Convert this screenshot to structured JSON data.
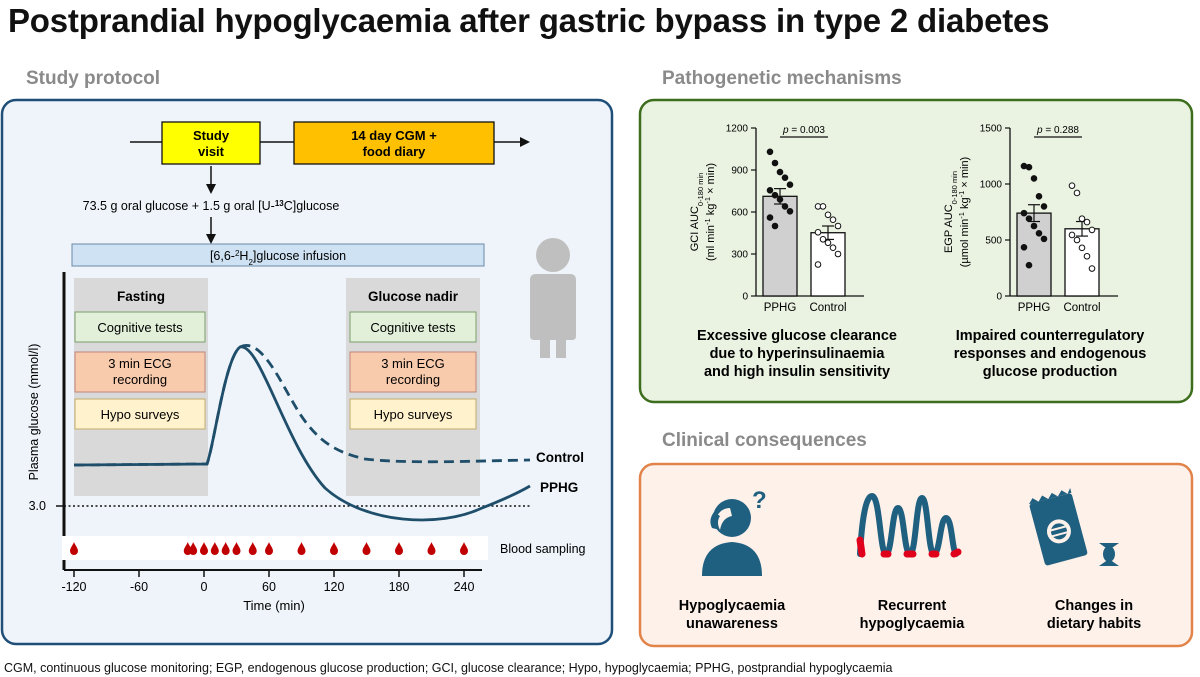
{
  "title": "Postprandial hypoglycaemia after gastric bypass in type 2 diabetes",
  "footnote": "CGM, continuous glucose monitoring; EGP, endogenous glucose production; GCI, glucose clearance; Hypo, hypoglycaemia; PPHG, postprandial hypoglycaemia",
  "protocol": {
    "section_title": "Study protocol",
    "study_visit": [
      "Study",
      "visit"
    ],
    "cgm_box": [
      "14 day CGM +",
      "food diary"
    ],
    "oral_glucose": {
      "pre": "73.5 g oral glucose + 1.5 g oral [U-",
      "sup": "13",
      "post": "C]glucose"
    },
    "infusion": {
      "pre": "[6,6-",
      "sup": "2",
      "mid": "H",
      "sub": "2",
      "post": "]glucose infusion"
    },
    "fasting": {
      "title": "Fasting",
      "items": [
        "Cognitive tests",
        "3 min ECG|recording",
        "Hypo surveys"
      ]
    },
    "nadir": {
      "title": "Glucose nadir",
      "items": [
        "Cognitive tests",
        "3 min ECG|recording",
        "Hypo surveys"
      ]
    },
    "ylabel": "Plasma glucose (mmol/l)",
    "threshold_label": "3.0",
    "curve_labels": {
      "control": "Control",
      "pphg": "PPHG"
    },
    "blood_sampling_label": "Blood sampling",
    "blood_sampling_times": [
      -120,
      -15,
      -10,
      0,
      10,
      20,
      30,
      45,
      60,
      90,
      120,
      150,
      180,
      210,
      240
    ],
    "xticks": [
      -120,
      -60,
      0,
      60,
      120,
      180,
      240
    ],
    "xlabel": "Time (min)",
    "colors": {
      "panel_bg": "#eef4fa",
      "panel_border": "#1f4e79",
      "study_visit": "#ffff00",
      "cgm": "#ffc000",
      "green_box": "#e2f0d9",
      "red_box": "#f8cbad",
      "yellow_box": "#fff2cc",
      "curve": "#1f4e6b",
      "drop": "#c00000"
    }
  },
  "mechanisms": {
    "section_title": "Pathogenetic mechanisms",
    "captions": [
      [
        "Excessive glucose clearance",
        "due to hyperinsulinaemia",
        "and high insulin sensitivity"
      ],
      [
        "Impaired counterregulatory",
        "responses and endogenous",
        "glucose production"
      ]
    ],
    "colors": {
      "panel_bg": "#eaf3e2",
      "panel_border": "#3c6e1e",
      "pphg_bar": "#d0d0d0"
    }
  },
  "chart_data": [
    {
      "type": "bar",
      "categories": [
        "PPHG",
        "Control"
      ],
      "values": [
        712,
        452
      ],
      "sem": [
        55,
        48
      ],
      "points": {
        "PPHG": [
          1030,
          950,
          885,
          845,
          795,
          755,
          720,
          690,
          640,
          605,
          560,
          500
        ],
        "Control": [
          640,
          640,
          580,
          545,
          500,
          455,
          405,
          380,
          345,
          300,
          225
        ]
      },
      "ylabel": "GCI AUC0-180 min (ml min-1 kg-1 × min)",
      "ylabel_parts": {
        "main": "GCI AUC",
        "sub": "0-180 min",
        "units_pre": "(ml min",
        "sup1": "-1",
        "mid": " kg",
        "sup2": "-1",
        "units_post": " × min)"
      },
      "yticks": [
        0,
        300,
        600,
        900,
        1200
      ],
      "ylim": [
        0,
        1200
      ],
      "annotation": "p = 0.003",
      "annotation_parts": {
        "p": "p",
        "rest": " = 0.003"
      }
    },
    {
      "type": "bar",
      "categories": [
        "PPHG",
        "Control"
      ],
      "values": [
        740,
        600
      ],
      "sem": [
        75,
        65
      ],
      "points": {
        "PPHG": [
          1160,
          1150,
          1050,
          890,
          800,
          740,
          690,
          625,
          560,
          510,
          435,
          275
        ],
        "Control": [
          985,
          920,
          690,
          660,
          590,
          545,
          500,
          430,
          355,
          245
        ]
      },
      "ylabel": "EGP AUC0-180 min (µmol min-1 kg-1 × min)",
      "ylabel_parts": {
        "main": "EGP AUC",
        "sub": "0-180 min",
        "units_pre": "(µmol min",
        "sup1": "-1",
        "mid": " kg",
        "sup2": "-1",
        "units_post": " × min)"
      },
      "yticks": [
        0,
        500,
        1000,
        1500
      ],
      "ylim": [
        0,
        1500
      ],
      "annotation": "p = 0.288",
      "annotation_parts": {
        "p": "p",
        "rest": " = 0.288"
      }
    }
  ],
  "consequences": {
    "section_title": "Clinical consequences",
    "items": [
      {
        "label": [
          "Hypoglycaemia",
          "unawareness"
        ],
        "icon": "person-question-icon"
      },
      {
        "label": [
          "Recurrent",
          "hypoglycaemia"
        ],
        "icon": "glucose-wave-icon"
      },
      {
        "label": [
          "Changes in",
          "dietary habits"
        ],
        "icon": "snack-candy-icon"
      }
    ],
    "colors": {
      "panel_bg": "#fdf1ea",
      "panel_border": "#e2844a",
      "icon": "#1f5f7f",
      "accent": "#e0001b"
    }
  }
}
